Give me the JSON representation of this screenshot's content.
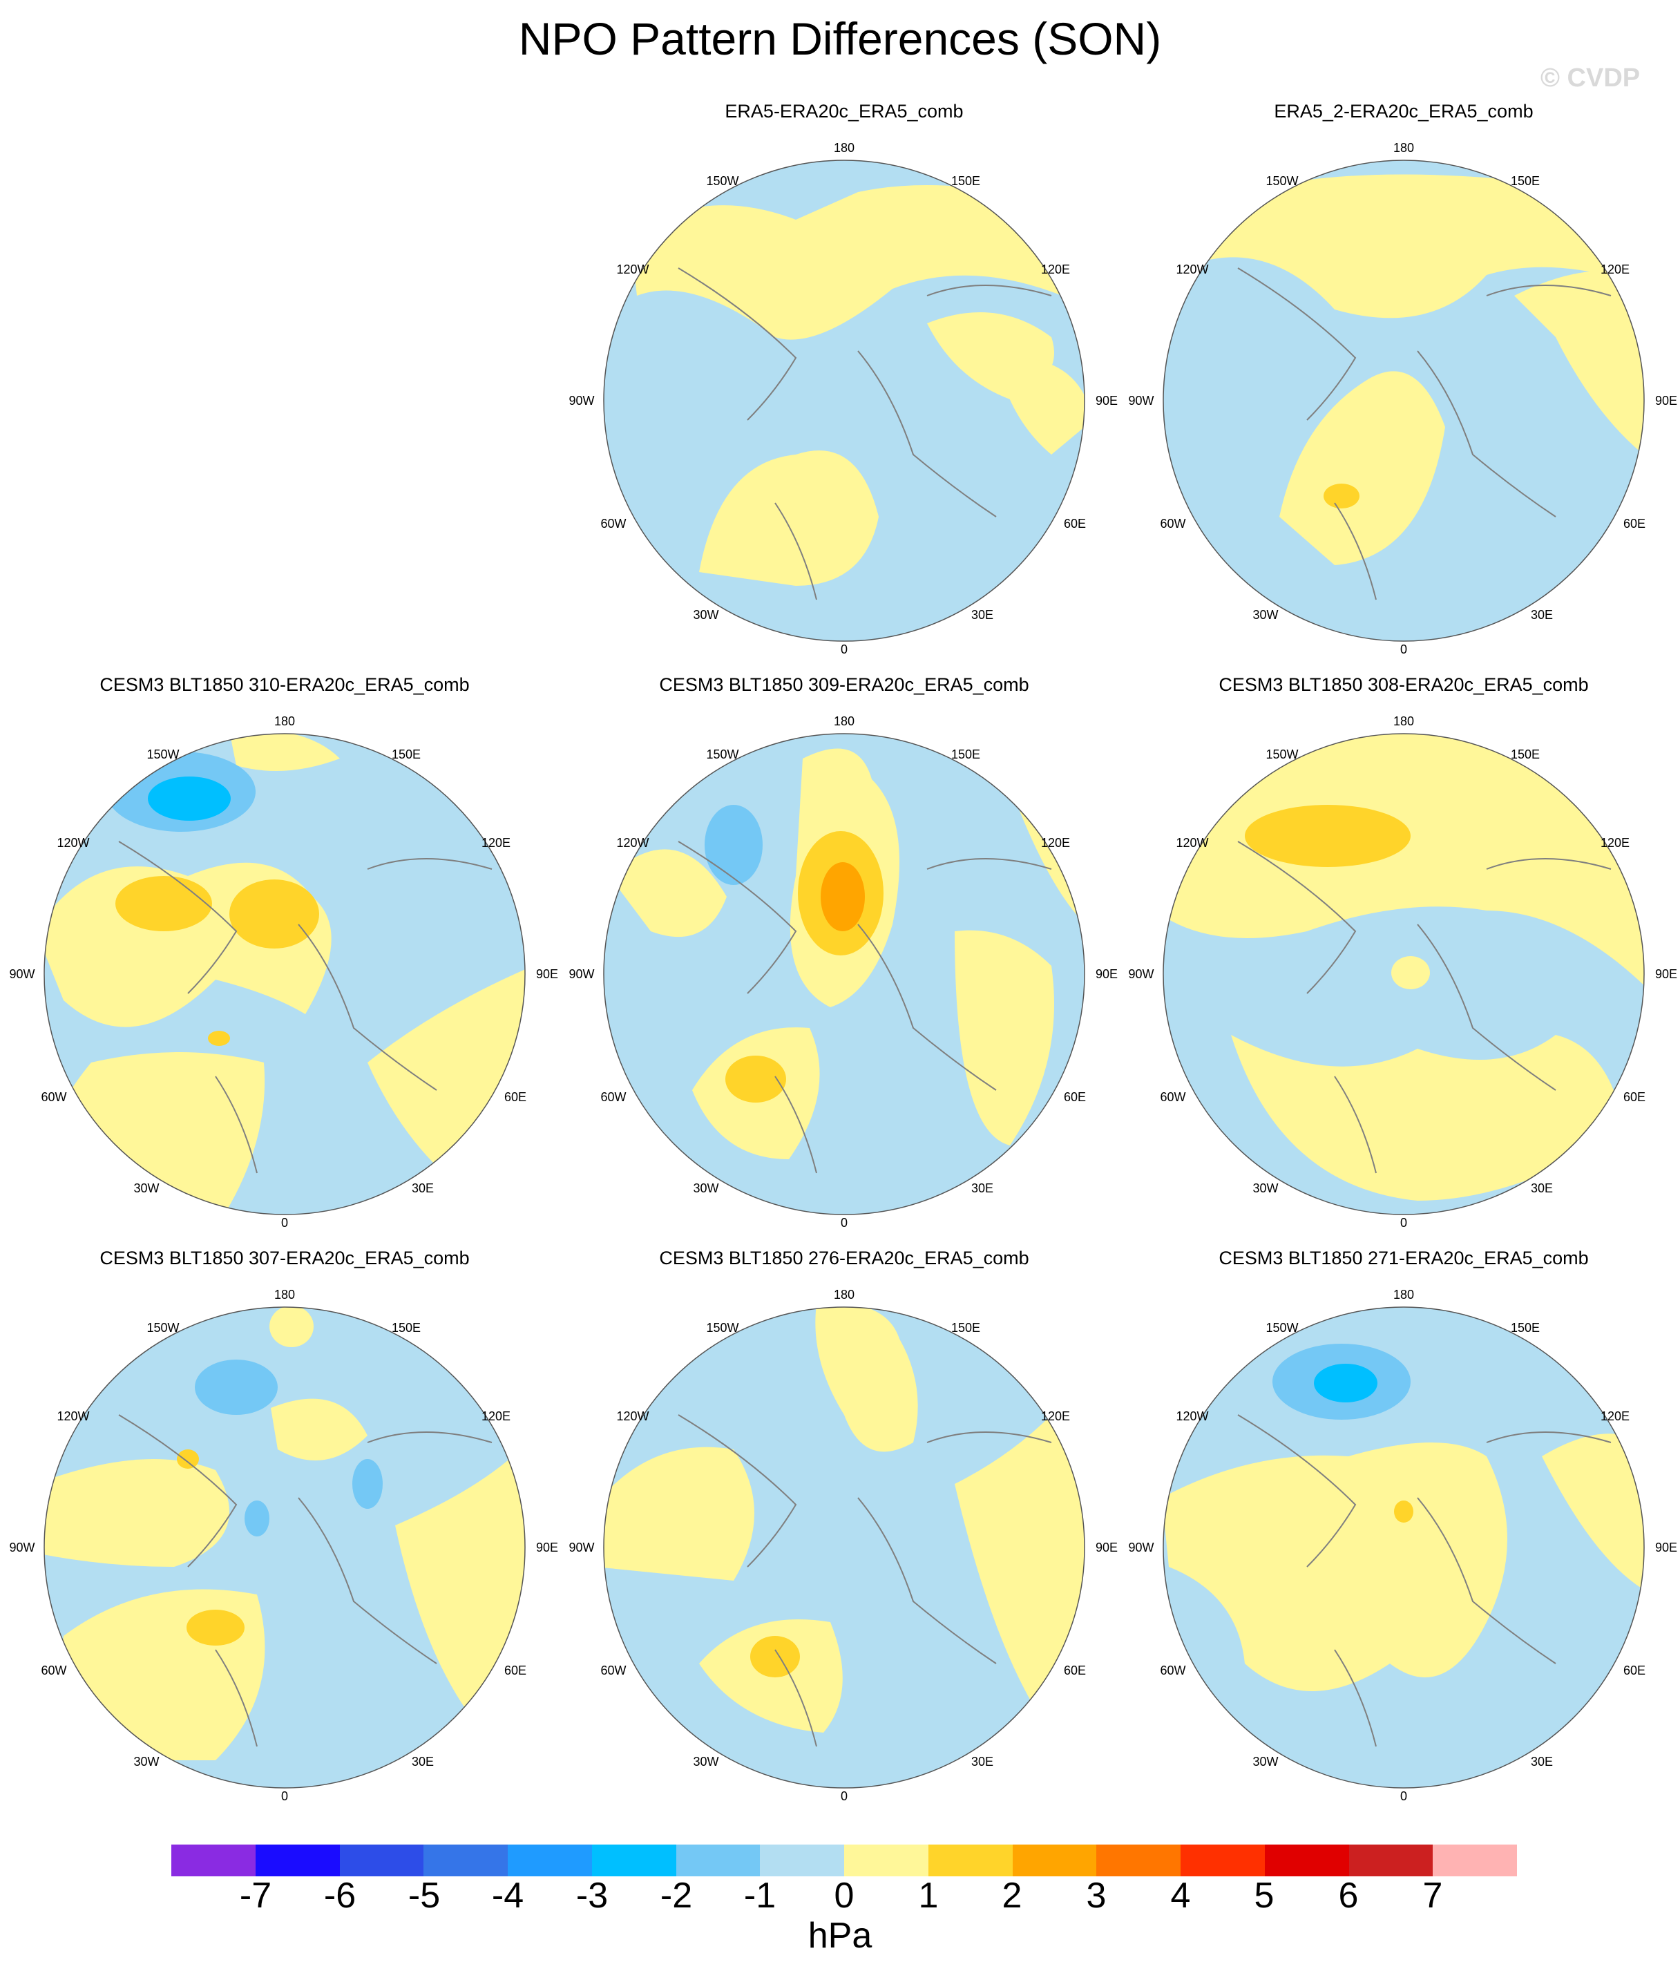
{
  "figure": {
    "title": "NPO Pattern Differences (SON)",
    "watermark": "© CVDP"
  },
  "longitude_labels": [
    "180",
    "150E",
    "120E",
    "90E",
    "60E",
    "30E",
    "0",
    "30W",
    "60W",
    "90W",
    "120W",
    "150W"
  ],
  "colors": {
    "neg_7": "#8a2be2",
    "neg_6": "#1a0cff",
    "neg_5": "#2d4de8",
    "neg_4": "#3575e8",
    "neg_3": "#1f9bff",
    "neg_2": "#00bfff",
    "neg_1": "#74c8f5",
    "neg_0": "#b3def2",
    "pos_0": "#fff799",
    "pos_1": "#ffd42a",
    "pos_2": "#ffa500",
    "pos_3": "#ff7600",
    "pos_4": "#ff3000",
    "pos_5": "#e00000",
    "pos_6": "#cc2020",
    "pos_7": "#ffb3b3",
    "coastline": "#7f7f7f"
  },
  "panels": [
    {
      "title": "ERA5-ERA20c_ERA5_comb"
    },
    {
      "title": "ERA5_2-ERA20c_ERA5_comb"
    },
    {
      "title": "CESM3 BLT1850 310-ERA20c_ERA5_comb"
    },
    {
      "title": "CESM3 BLT1850 309-ERA20c_ERA5_comb"
    },
    {
      "title": "CESM3 BLT1850 308-ERA20c_ERA5_comb"
    },
    {
      "title": "CESM3 BLT1850 307-ERA20c_ERA5_comb"
    },
    {
      "title": "CESM3 BLT1850 276-ERA20c_ERA5_comb"
    },
    {
      "title": "CESM3 BLT1850 271-ERA20c_ERA5_comb"
    }
  ],
  "colorbar": {
    "labels": [
      "-7",
      "-6",
      "-5",
      "-4",
      "-3",
      "-2",
      "-1",
      "0",
      "1",
      "2",
      "3",
      "4",
      "5",
      "6",
      "7"
    ],
    "units": "hPa"
  }
}
